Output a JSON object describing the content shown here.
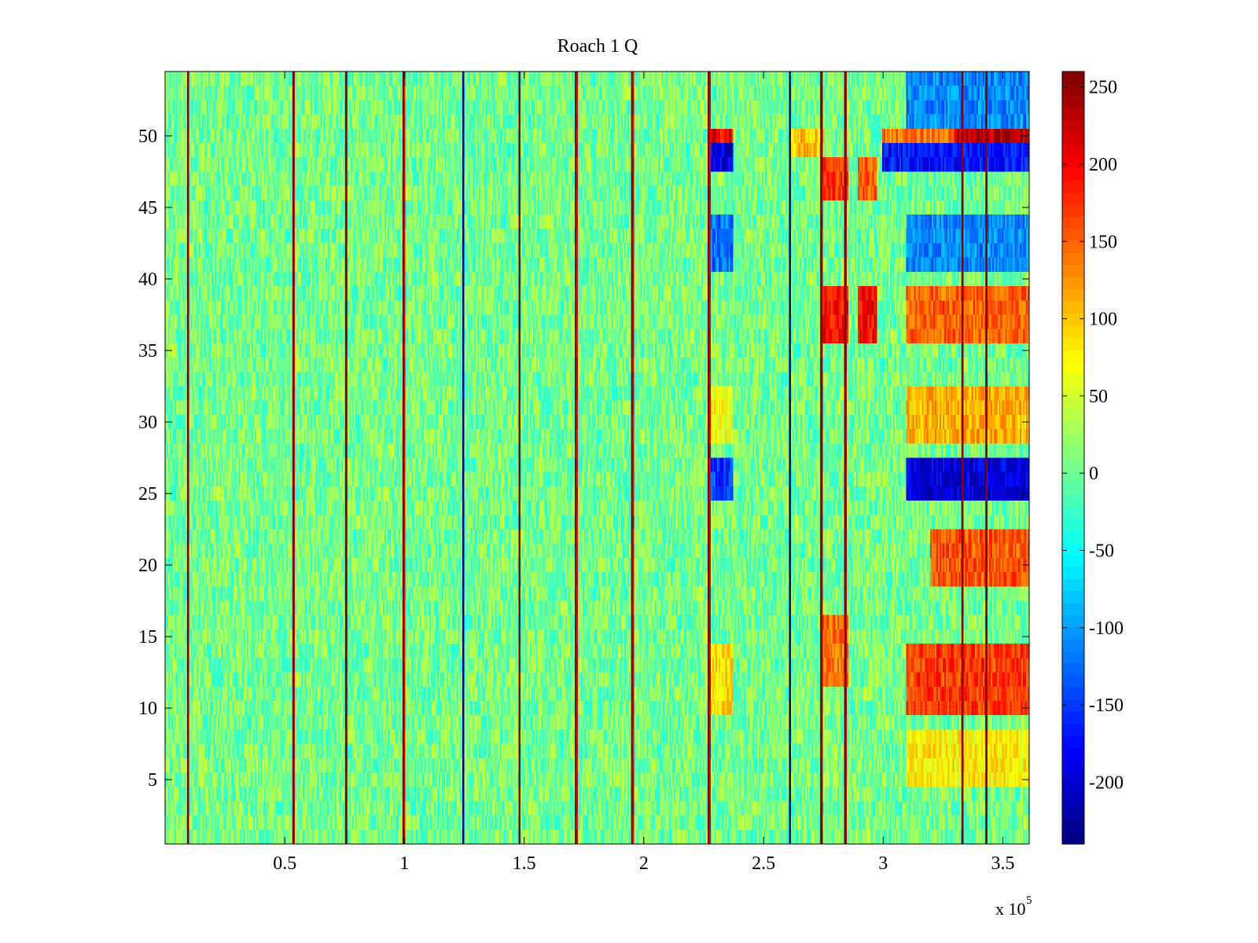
{
  "chart_data": {
    "type": "heatmap",
    "title": "Roach 1 Q",
    "xlabel": "",
    "ylabel": "",
    "xlim": [
      0,
      361000
    ],
    "ylim": [
      0.5,
      54.5
    ],
    "n_rows": 54,
    "x_ticks": [
      {
        "value": 50000,
        "label": "0.5"
      },
      {
        "value": 100000,
        "label": "1"
      },
      {
        "value": 150000,
        "label": "1.5"
      },
      {
        "value": 200000,
        "label": "2"
      },
      {
        "value": 250000,
        "label": "2.5"
      },
      {
        "value": 300000,
        "label": "3"
      },
      {
        "value": 350000,
        "label": "3.5"
      }
    ],
    "x_exponent": {
      "base": "x 10",
      "power": "5"
    },
    "y_ticks": [
      {
        "value": 5,
        "label": "5"
      },
      {
        "value": 10,
        "label": "10"
      },
      {
        "value": 15,
        "label": "15"
      },
      {
        "value": 20,
        "label": "20"
      },
      {
        "value": 25,
        "label": "25"
      },
      {
        "value": 30,
        "label": "30"
      },
      {
        "value": 35,
        "label": "35"
      },
      {
        "value": 40,
        "label": "40"
      },
      {
        "value": 45,
        "label": "45"
      },
      {
        "value": 50,
        "label": "50"
      }
    ],
    "colorbar": {
      "colormap": "jet",
      "range": [
        -240,
        260
      ],
      "ticks": [
        {
          "value": 250,
          "label": "250"
        },
        {
          "value": 200,
          "label": "200"
        },
        {
          "value": 150,
          "label": "150"
        },
        {
          "value": 100,
          "label": "100"
        },
        {
          "value": 50,
          "label": "50"
        },
        {
          "value": 0,
          "label": "0"
        },
        {
          "value": -50,
          "label": "-50"
        },
        {
          "value": -100,
          "label": "-100"
        },
        {
          "value": -150,
          "label": "-150"
        },
        {
          "value": -200,
          "label": "-200"
        }
      ]
    },
    "background_noise": {
      "mean": 5,
      "amplitude": 45
    },
    "spike_lines": [
      {
        "x": 9500,
        "value": 245
      },
      {
        "x": 53500,
        "value": 230
      },
      {
        "x": 75500,
        "value": 225
      },
      {
        "x": 99500,
        "value": 220
      },
      {
        "x": 124500,
        "value": -220
      },
      {
        "x": 148000,
        "value": 225
      },
      {
        "x": 171500,
        "value": 220
      },
      {
        "x": 195000,
        "value": 225
      },
      {
        "x": 227000,
        "value": 235
      },
      {
        "x": 261000,
        "value": -225
      },
      {
        "x": 274000,
        "value": 255
      },
      {
        "x": 284000,
        "value": 250
      },
      {
        "x": 333000,
        "value": 255
      },
      {
        "x": 343000,
        "value": 255
      }
    ],
    "regions": [
      {
        "x": [
          227000,
          237000
        ],
        "rows": [
          49,
          50
        ],
        "value": 200
      },
      {
        "x": [
          227000,
          237000
        ],
        "rows": [
          48,
          49
        ],
        "value": -190
      },
      {
        "x": [
          227000,
          237000
        ],
        "rows": [
          41,
          44
        ],
        "value": -120
      },
      {
        "x": [
          227000,
          237000
        ],
        "rows": [
          25,
          27
        ],
        "value": -150
      },
      {
        "x": [
          227000,
          237000
        ],
        "rows": [
          10,
          14
        ],
        "value": 90
      },
      {
        "x": [
          227000,
          237000
        ],
        "rows": [
          29,
          32
        ],
        "value": 70
      },
      {
        "x": [
          261000,
          275000
        ],
        "rows": [
          49,
          50
        ],
        "value": 100
      },
      {
        "x": [
          275000,
          285000
        ],
        "rows": [
          36,
          39
        ],
        "value": 190
      },
      {
        "x": [
          275000,
          285000
        ],
        "rows": [
          46,
          48
        ],
        "value": 170
      },
      {
        "x": [
          275000,
          285000
        ],
        "rows": [
          12,
          16
        ],
        "value": 140
      },
      {
        "x": [
          290000,
          297000
        ],
        "rows": [
          36,
          39
        ],
        "value": 200
      },
      {
        "x": [
          290000,
          297000
        ],
        "rows": [
          46,
          48
        ],
        "value": 150
      },
      {
        "x": [
          300000,
          361000
        ],
        "rows": [
          49,
          50
        ],
        "value": 140
      },
      {
        "x": [
          330000,
          361000
        ],
        "rows": [
          49,
          50
        ],
        "value": 235
      },
      {
        "x": [
          300000,
          361000
        ],
        "rows": [
          48,
          49
        ],
        "value": -170
      },
      {
        "x": [
          310000,
          361000
        ],
        "rows": [
          51,
          54
        ],
        "value": -110
      },
      {
        "x": [
          310000,
          361000
        ],
        "rows": [
          41,
          44
        ],
        "value": -110
      },
      {
        "x": [
          310000,
          361000
        ],
        "rows": [
          36,
          39
        ],
        "value": 150
      },
      {
        "x": [
          310000,
          361000
        ],
        "rows": [
          29,
          32
        ],
        "value": 110
      },
      {
        "x": [
          310000,
          361000
        ],
        "rows": [
          25,
          27
        ],
        "value": -195
      },
      {
        "x": [
          320000,
          361000
        ],
        "rows": [
          19,
          22
        ],
        "value": 155
      },
      {
        "x": [
          310000,
          361000
        ],
        "rows": [
          10,
          14
        ],
        "value": 170
      },
      {
        "x": [
          310000,
          361000
        ],
        "rows": [
          5,
          8
        ],
        "value": 80
      }
    ]
  }
}
